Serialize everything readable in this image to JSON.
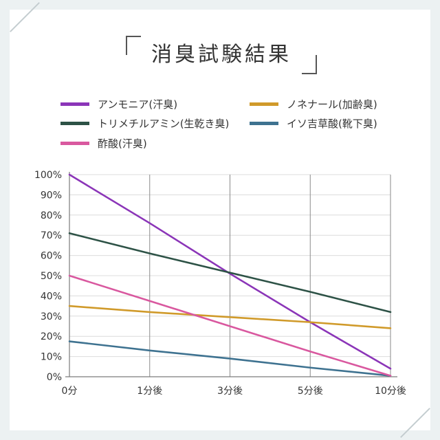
{
  "title": "消臭試験結果",
  "colors": {
    "ammonia": "#8b35b8",
    "nonenal": "#d09a2a",
    "trimethylamine": "#2d5246",
    "isovaleric": "#3e7290",
    "acetic": "#d9589f"
  },
  "chart_data": {
    "type": "line",
    "title": "消臭試験結果",
    "xlabel": "",
    "ylabel": "",
    "categories": [
      "0分",
      "1分後",
      "3分後",
      "5分後",
      "10分後"
    ],
    "ylim": [
      0,
      100
    ],
    "yticks": [
      "0%",
      "10%",
      "20%",
      "30%",
      "40%",
      "50%",
      "60%",
      "70%",
      "80%",
      "90%",
      "100%"
    ],
    "grid": true,
    "legend_position": "top",
    "series": [
      {
        "name": "アンモニア(汗臭)",
        "key": "ammonia",
        "values": [
          100,
          76,
          51,
          27,
          4
        ]
      },
      {
        "name": "ノネナール(加齢臭)",
        "key": "nonenal",
        "values": [
          35,
          32,
          29.5,
          27,
          24
        ]
      },
      {
        "name": "トリメチルアミン(生乾き臭)",
        "key": "trimethylamine",
        "values": [
          71,
          61,
          51.5,
          42,
          32
        ]
      },
      {
        "name": "イソ吉草酸(靴下臭)",
        "key": "isovaleric",
        "values": [
          17.5,
          13,
          9,
          4.5,
          0.5
        ]
      },
      {
        "name": "酢酸(汗臭)",
        "key": "acetic",
        "values": [
          50,
          37.5,
          25,
          12.5,
          0.5
        ]
      }
    ]
  }
}
